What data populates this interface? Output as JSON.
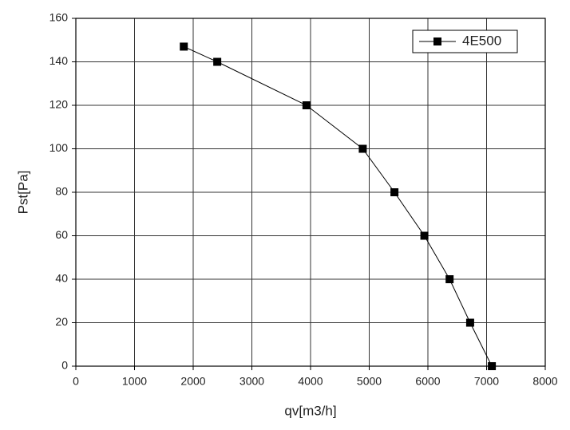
{
  "chart_data": {
    "type": "line",
    "x_label": "qv[m3/h]",
    "y_label": "Pst[Pa]",
    "series": [
      {
        "name": "4E500",
        "color": "#000000",
        "x": [
          1840,
          2410,
          3930,
          4890,
          5430,
          5940,
          6370,
          6720,
          7090
        ],
        "values": [
          147,
          140,
          120,
          100,
          80,
          60,
          40,
          20,
          0
        ]
      }
    ],
    "xlim": [
      0,
      8000
    ],
    "xticks": [
      0,
      1000,
      2000,
      3000,
      4000,
      5000,
      6000,
      7000,
      8000
    ],
    "ylim": [
      0,
      160
    ],
    "yticks": [
      0,
      20,
      40,
      60,
      80,
      100,
      120,
      140,
      160
    ],
    "grid": true,
    "legend": "top-right"
  }
}
